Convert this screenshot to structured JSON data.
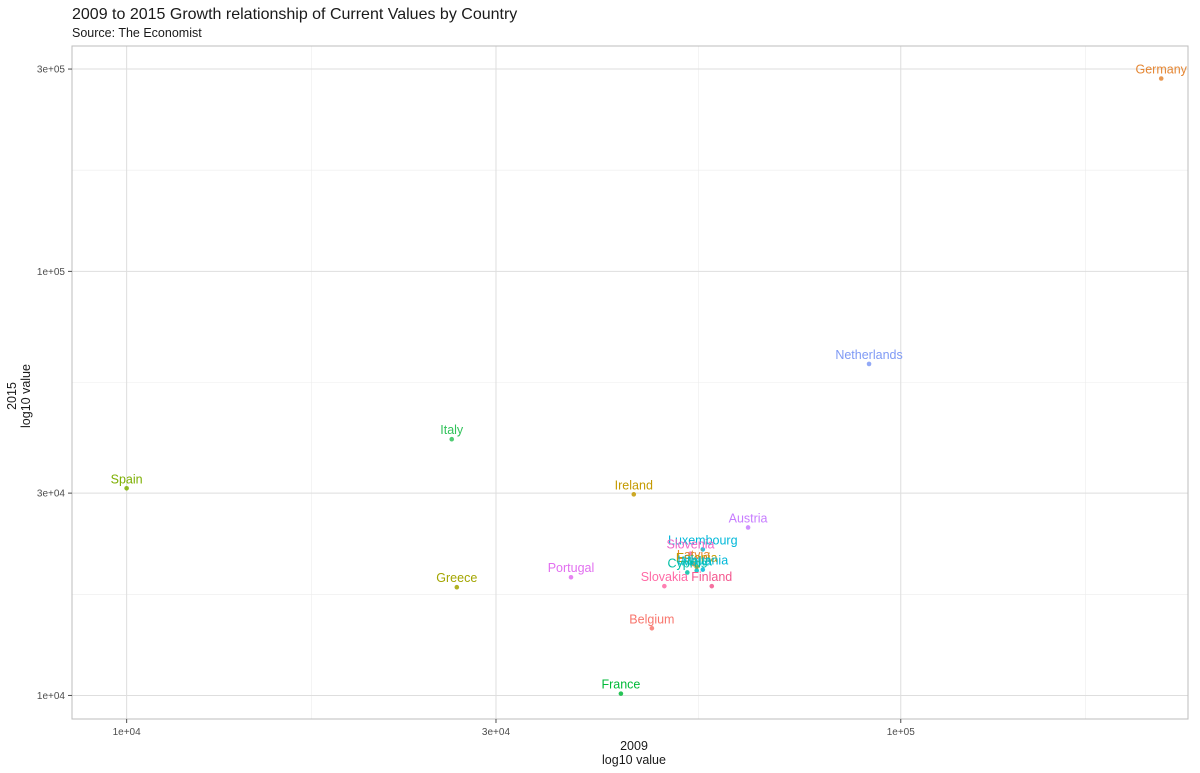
{
  "chart_data": {
    "type": "scatter",
    "title": "2009 to 2015 Growth relationship of Current Values by Country",
    "subtitle": "Source: The Economist",
    "xlabel": [
      "2009",
      "log10 value"
    ],
    "ylabel": [
      "2015",
      "log10 value"
    ],
    "x_scale": "log10",
    "y_scale": "log10",
    "xlim": [
      8500,
      235000
    ],
    "ylim": [
      8800,
      340000
    ],
    "x_ticks": [
      {
        "value": 10000,
        "label": "1e+04"
      },
      {
        "value": 30000,
        "label": "3e+04"
      },
      {
        "value": 100000,
        "label": "1e+05"
      }
    ],
    "y_ticks": [
      {
        "value": 10000,
        "label": "1e+04"
      },
      {
        "value": 30000,
        "label": "3e+04"
      },
      {
        "value": 100000,
        "label": "1e+05"
      },
      {
        "value": 300000,
        "label": "3e+05"
      }
    ],
    "x_minor": [
      17320,
      54770,
      173200
    ],
    "y_minor": [
      17320,
      54770,
      173200
    ],
    "grid": true,
    "legend": "none",
    "points": [
      {
        "label": "Germany",
        "x": 217000,
        "y": 285000,
        "color": "#E58734"
      },
      {
        "label": "Netherlands",
        "x": 91000,
        "y": 60500,
        "color": "#7F9AF5"
      },
      {
        "label": "Italy",
        "x": 26300,
        "y": 40200,
        "color": "#31C25A"
      },
      {
        "label": "Spain",
        "x": 10000,
        "y": 30800,
        "color": "#7CAE00"
      },
      {
        "label": "Ireland",
        "x": 45200,
        "y": 29800,
        "color": "#C49A00"
      },
      {
        "label": "Austria",
        "x": 63500,
        "y": 24900,
        "color": "#C77CFF"
      },
      {
        "label": "Luxembourg",
        "x": 55500,
        "y": 22100,
        "color": "#00B8D9"
      },
      {
        "label": "Slovenia",
        "x": 53500,
        "y": 21600,
        "color": "#F066C8"
      },
      {
        "label": "Latvia",
        "x": 54000,
        "y": 20400,
        "color": "#E58734"
      },
      {
        "label": "Estonia",
        "x": 54500,
        "y": 20100,
        "color": "#C49A00"
      },
      {
        "label": "Lithuania",
        "x": 55500,
        "y": 19800,
        "color": "#00B8D9"
      },
      {
        "label": "Cyprus",
        "x": 53000,
        "y": 19500,
        "color": "#00BFA5"
      },
      {
        "label": "Malta",
        "x": 54500,
        "y": 19700,
        "color": "#00BFC4"
      },
      {
        "label": "Portugal",
        "x": 37500,
        "y": 19000,
        "color": "#E26FF0"
      },
      {
        "label": "Slovakia",
        "x": 49500,
        "y": 18100,
        "color": "#FF6AA6"
      },
      {
        "label": "Finland",
        "x": 57000,
        "y": 18100,
        "color": "#F3588F"
      },
      {
        "label": "Greece",
        "x": 26700,
        "y": 18000,
        "color": "#A3A500"
      },
      {
        "label": "Belgium",
        "x": 47700,
        "y": 14400,
        "color": "#F8766D"
      },
      {
        "label": "France",
        "x": 43500,
        "y": 10100,
        "color": "#00BA38"
      }
    ]
  }
}
